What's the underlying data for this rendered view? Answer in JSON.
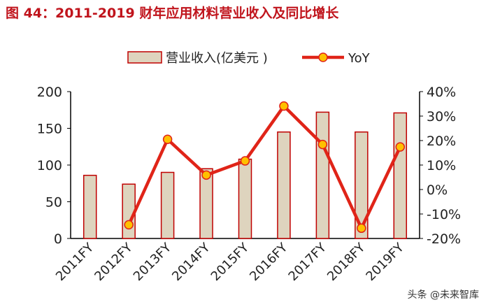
{
  "title": "图 44：2011-2019 财年应用材料营业收入及同比增长",
  "watermark": "头条 @未来智库",
  "chart_data": {
    "type": "bar+line",
    "categories": [
      "2011FY",
      "2012FY",
      "2013FY",
      "2014FY",
      "2015FY",
      "2016FY",
      "2017FY",
      "2018FY",
      "2019FY"
    ],
    "series": [
      {
        "name": "营业收入(亿美元 )",
        "type": "bar",
        "axis": "left",
        "values": [
          86,
          74,
          90,
          95,
          108,
          145,
          172,
          145,
          171
        ],
        "color": "#ded4be",
        "edge": "#c00000"
      },
      {
        "name": "YoY",
        "type": "line",
        "axis": "right",
        "values": [
          null,
          -14.4,
          20.5,
          5.9,
          11.7,
          34.1,
          18.4,
          -15.8,
          17.4
        ],
        "color": "#e02418",
        "marker": "#ffc000"
      }
    ],
    "left_axis": {
      "ylim": [
        0,
        200
      ],
      "ticks": [
        "0",
        "50",
        "100",
        "150",
        "200"
      ]
    },
    "right_axis": {
      "ylim": [
        -20,
        40
      ],
      "ticks": [
        "-20%",
        "-10%",
        "0%",
        "10%",
        "20%",
        "30%",
        "40%"
      ]
    },
    "legend_position": "top"
  }
}
